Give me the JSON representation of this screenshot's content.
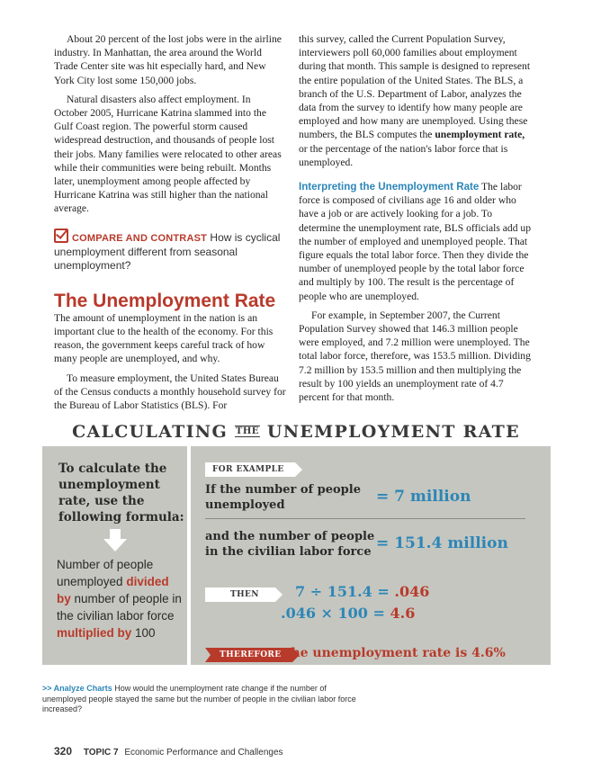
{
  "left_column": {
    "p1": "About 20 percent of the lost jobs were in the airline industry. In Manhattan, the area around the World Trade Center site was hit especially hard, and New York City lost some 150,000 jobs.",
    "p2": "Natural disasters also affect employment. In October 2005, Hurricane Katrina slammed into the Gulf Coast region. The powerful storm caused widespread destruction, and thousands of people lost their jobs. Many families were relocated to other areas while their communities were being rebuilt. Months later, unemployment among people affected by Hurricane Katrina was still higher than the national average.",
    "compare_label": "COMPARE AND CONTRAST",
    "compare_text": "How is cyclical unemployment different from seasonal unemployment?",
    "section_title": "The Unemployment Rate",
    "p3": "The amount of unemployment in the nation is an important clue to the health of the economy. For this reason, the government keeps careful track of how many people are unemployed, and why.",
    "p4": "To measure employment, the United States Bureau of the Census conducts a monthly household survey for the Bureau of Labor Statistics (BLS). For"
  },
  "right_column": {
    "p1_before": "this survey, called the Current Population Survey, interviewers poll 60,000 families about employment during that month. This sample is designed to represent the entire population of the United States. The BLS, a branch of the U.S. Department of Labor, analyzes the data from the survey to identify how many people are employed and how many are unemployed. Using these numbers, the BLS computes the",
    "p1_term": "unemployment rate,",
    "p1_after": "or the percentage of the nation's labor force that is unemployed.",
    "subhead": "Interpreting the Unemployment Rate",
    "p2": "The labor force is composed of civilians age 16 and older who have a job or are actively looking for a job. To determine the unemployment rate, BLS officials add up the number of employed and unemployed people. That figure equals the total labor force. Then they divide the number of unemployed people by the total labor force and multiply by 100. The result is the percentage of people who are unemployed.",
    "p3": "For example, in September 2007, the Current Population Survey showed that 146.3 million people were employed, and 7.2 million were unemployed. The total labor force, therefore, was 153.5 million. Dividing 7.2 million by 153.5 million and then multiplying the result by 100 yields an unemployment rate of 4.7 percent for that month."
  },
  "figure": {
    "title_a": "CALCULATING",
    "title_the": "THE",
    "title_b": "UNEMPLOYMENT RATE",
    "formula_heading": "To calculate the unemployment rate, use the following formula:",
    "formula_1": "Number of people unemployed",
    "formula_div": "divided by",
    "formula_2": "number of people in the civilian labor force",
    "formula_mult": "multiplied by",
    "formula_3": "100",
    "for_example_tag": "FOR EXAMPLE",
    "ex1_label": "If the number of people unemployed",
    "ex1_value": "7 million",
    "ex2_label": "and the number of people in the civilian labor force",
    "ex2_value": "151.4 million",
    "then_tag": "THEN",
    "calc1_a": "7",
    "calc1_op": "÷",
    "calc1_b": "151.4",
    "calc1_result": ".046",
    "calc2_a": ".046",
    "calc2_op": "×",
    "calc2_b": "100",
    "calc2_result": "4.6",
    "equals": "=",
    "therefore_tag": "THEREFORE",
    "therefore_text": "the unemployment rate is 4.6%"
  },
  "caption": {
    "lead": ">> Analyze Charts",
    "text": "How would the unemployment rate change if the number of unemployed people stayed the same but the number of people in the civilian labor force increased?"
  },
  "footer": {
    "page_number": "320",
    "topic": "TOPIC 7",
    "topic_title": "Economic Performance and Challenges"
  },
  "colors": {
    "accent_red": "#b83a2b",
    "accent_blue": "#2c86b8",
    "panel_gray": "#c5c6bf"
  }
}
